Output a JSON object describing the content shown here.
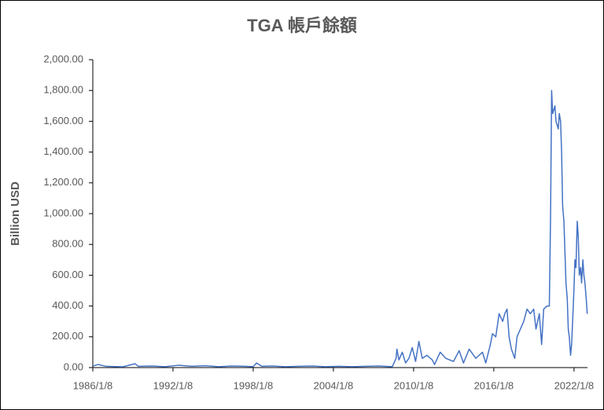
{
  "chart_data": {
    "type": "line",
    "title": "TGA 帳戶餘額",
    "y_label": "Billion USD",
    "x": [
      "1986/1/8",
      "1986/6/4",
      "1987/1/7",
      "1988/4/6",
      "1989/3/8",
      "1989/6/7",
      "1990/6/6",
      "1991/6/5",
      "1992/6/3",
      "1993/6/2",
      "1994/6/1",
      "1995/6/7",
      "1996/6/5",
      "1997/6/4",
      "1998/1/7",
      "1998/4/8",
      "1998/9/2",
      "1999/6/2",
      "2000/6/7",
      "2001/6/6",
      "2002/6/5",
      "2003/6/4",
      "2004/6/2",
      "2005/6/1",
      "2006/6/7",
      "2007/6/6",
      "2008/6/4",
      "2008/9/17",
      "2008/10/8",
      "2008/12/3",
      "2009/3/4",
      "2009/6/3",
      "2009/9/2",
      "2009/12/2",
      "2010/3/3",
      "2010/6/2",
      "2010/9/1",
      "2011/1/5",
      "2011/6/1",
      "2011/8/3",
      "2012/1/4",
      "2012/6/6",
      "2013/1/2",
      "2013/6/5",
      "2013/10/2",
      "2014/3/5",
      "2014/9/3",
      "2015/3/4",
      "2015/6/3",
      "2015/10/7",
      "2015/12/2",
      "2016/3/2",
      "2016/6/1",
      "2016/9/7",
      "2016/11/2",
      "2017/1/4",
      "2017/3/1",
      "2017/5/3",
      "2017/8/2",
      "2017/10/4",
      "2018/1/3",
      "2018/4/4",
      "2018/7/4",
      "2018/10/3",
      "2019/1/2",
      "2019/3/6",
      "2019/6/5",
      "2019/8/7",
      "2019/10/2",
      "2020/1/1",
      "2020/3/4",
      "2020/4/8",
      "2020/5/6",
      "2020/6/3",
      "2020/8/5",
      "2020/9/2",
      "2020/11/4",
      "2020/12/2",
      "2021/1/6",
      "2021/2/3",
      "2021/3/3",
      "2021/4/7",
      "2021/5/5",
      "2021/6/2",
      "2021/7/7",
      "2021/8/4",
      "2021/9/1",
      "2021/10/6",
      "2021/11/3",
      "2021/12/1",
      "2022/1/5",
      "2022/2/2",
      "2022/3/2",
      "2022/4/6",
      "2022/5/4",
      "2022/6/1",
      "2022/7/6",
      "2022/8/3",
      "2022/9/7",
      "2022/10/5",
      "2022/11/2",
      "2022/12/7",
      "2023/1/4"
    ],
    "series": [
      {
        "name": "TGA",
        "color": "#4472c4",
        "values": [
          10,
          20,
          8,
          5,
          25,
          8,
          10,
          6,
          15,
          8,
          12,
          6,
          10,
          8,
          6,
          30,
          8,
          10,
          6,
          8,
          10,
          6,
          8,
          6,
          8,
          10,
          6,
          60,
          120,
          50,
          100,
          30,
          60,
          130,
          40,
          170,
          60,
          80,
          50,
          20,
          100,
          60,
          40,
          110,
          30,
          120,
          60,
          100,
          30,
          150,
          220,
          200,
          350,
          300,
          350,
          380,
          200,
          120,
          60,
          200,
          250,
          300,
          380,
          350,
          380,
          250,
          350,
          150,
          380,
          400,
          400,
          1000,
          1800,
          1650,
          1700,
          1600,
          1550,
          1650,
          1600,
          1400,
          1050,
          950,
          750,
          550,
          450,
          250,
          200,
          80,
          150,
          300,
          500,
          700,
          650,
          950,
          850,
          600,
          650,
          550,
          700,
          600,
          550,
          450,
          350
        ]
      }
    ],
    "xlim": [
      "1986/1/8",
      "2023/1/11"
    ],
    "xticks": [
      "1986/1/8",
      "1992/1/8",
      "1998/1/8",
      "2004/1/8",
      "2010/1/8",
      "2016/1/8",
      "2022/1/8"
    ],
    "ylim": [
      0,
      2000
    ],
    "yticks": [
      {
        "value": 0,
        "label": "0.00"
      },
      {
        "value": 200,
        "label": "200.00"
      },
      {
        "value": 400,
        "label": "400.00"
      },
      {
        "value": 600,
        "label": "600.00"
      },
      {
        "value": 800,
        "label": "800.00"
      },
      {
        "value": 1000,
        "label": "1,000.00"
      },
      {
        "value": 1200,
        "label": "1,200.00"
      },
      {
        "value": 1400,
        "label": "1,400.00"
      },
      {
        "value": 1600,
        "label": "1,600.00"
      },
      {
        "value": 1800,
        "label": "1,800.00"
      },
      {
        "value": 2000,
        "label": "2,000.00"
      }
    ],
    "grid": false
  }
}
